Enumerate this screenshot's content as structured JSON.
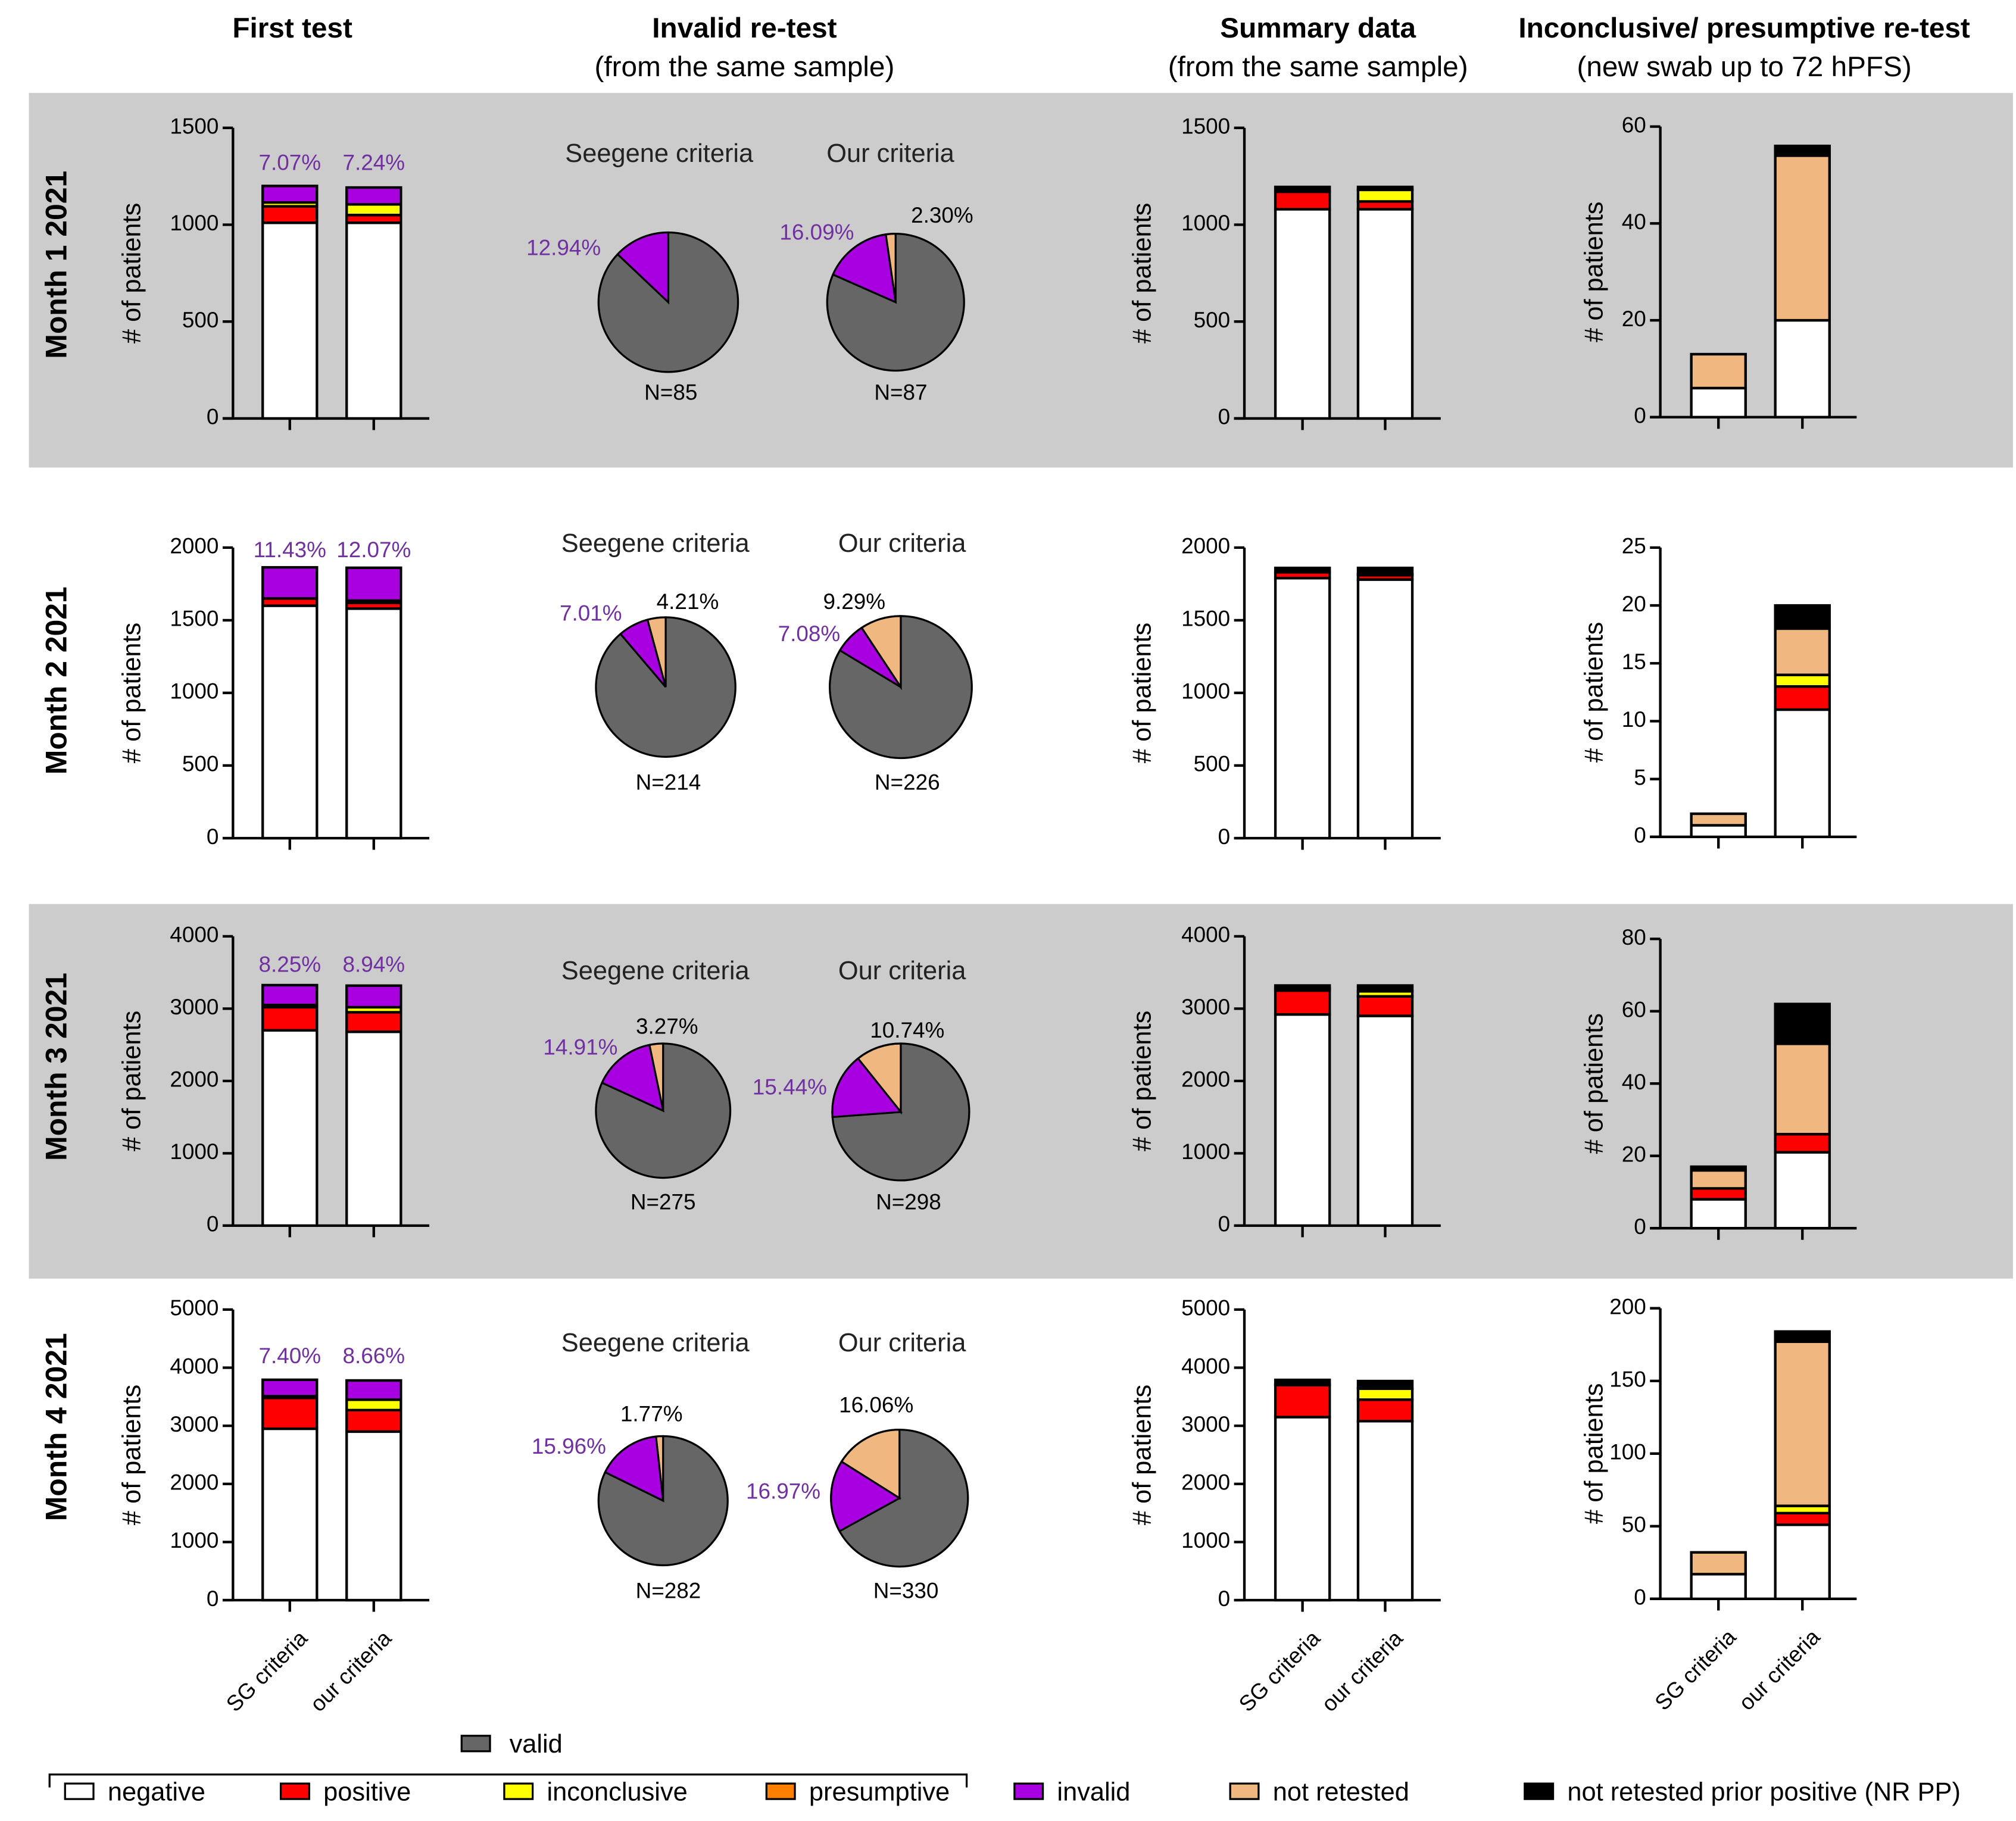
{
  "column_titles": {
    "first_test": "First test",
    "invalid_retest": "Invalid re-test",
    "invalid_retest_sub": "(from the same sample)",
    "summary": "Summary data",
    "summary_sub": "(from the same sample)",
    "inconclusive": "Inconclusive/ presumptive re-test",
    "inconclusive_sub": "(new swab up to 72 hPFS)"
  },
  "pie_titles": {
    "seegene": "Seegene criteria",
    "ours": "Our criteria"
  },
  "legend": {
    "valid": "valid",
    "items": [
      {
        "key": "negative",
        "label": "negative"
      },
      {
        "key": "positive",
        "label": "positive"
      },
      {
        "key": "inconclusive",
        "label": "inconclusive"
      },
      {
        "key": "presumptive",
        "label": "presumptive"
      },
      {
        "key": "invalid",
        "label": "invalid"
      },
      {
        "key": "not_retested",
        "label": "not retested"
      },
      {
        "key": "nr_pp",
        "label": "not retested prior positive (NR PP)"
      }
    ]
  },
  "colors": {
    "negative": "#ffffff",
    "positive": "#ff0000",
    "inconclusive": "#ffff00",
    "presumptive": "#ff8000",
    "invalid": "#a800e0",
    "not_retested": "#f0b880",
    "nr_pp": "#000000",
    "valid": "#666666",
    "percent_text": "#7030a0",
    "band": "#cccccc"
  },
  "chart_data": {
    "type": "bar",
    "stacked": true,
    "series_order": [
      "negative",
      "positive",
      "inconclusive",
      "presumptive",
      "invalid",
      "not_retested",
      "nr_pp"
    ],
    "categories": [
      "SG criteria",
      "our criteria"
    ],
    "ylabel": "# of patients",
    "rows": [
      {
        "label": "Month 1 2021",
        "first_test": {
          "ylim": [
            0,
            1500
          ],
          "ticks": [
            "0",
            "500",
            "1000",
            "1500"
          ],
          "bars": [
            {
              "segments": [
                1010,
                85,
                20,
                0,
                85,
                0,
                0
              ],
              "invalid_pct": "7.07%"
            },
            {
              "segments": [
                1010,
                40,
                55,
                0,
                87,
                0,
                0
              ],
              "invalid_pct": "7.24%"
            }
          ]
        },
        "invalid_retest": [
          {
            "n": "N=85",
            "not_retested": 0,
            "invalid": 12.94,
            "valid": 87.06,
            "invalid_label": "12.94%",
            "nr_label": null
          },
          {
            "n": "N=87",
            "not_retested": 2.3,
            "invalid": 16.09,
            "valid": 81.61,
            "invalid_label": "16.09%",
            "nr_label": "2.30%"
          }
        ],
        "summary": {
          "ylim": [
            0,
            1500
          ],
          "ticks": [
            "0",
            "500",
            "1000",
            "1500"
          ],
          "bars": [
            {
              "segments": [
                1080,
                90,
                0,
                0,
                0,
                0,
                25
              ]
            },
            {
              "segments": [
                1080,
                40,
                60,
                0,
                0,
                0,
                15
              ]
            }
          ]
        },
        "inconclusive": {
          "ylim": [
            0,
            60
          ],
          "ticks": [
            "0",
            "20",
            "40",
            "60"
          ],
          "bars": [
            {
              "segments": [
                6,
                0,
                0,
                0,
                0,
                7,
                0
              ]
            },
            {
              "segments": [
                20,
                0,
                0,
                0,
                0,
                34,
                2
              ]
            }
          ]
        }
      },
      {
        "label": "Month 2 2021",
        "first_test": {
          "ylim": [
            0,
            2000
          ],
          "ticks": [
            "0",
            "500",
            "1000",
            "1500",
            "2000"
          ],
          "bars": [
            {
              "segments": [
                1600,
                50,
                0,
                0,
                214,
                0,
                0
              ],
              "invalid_pct": "11.43%"
            },
            {
              "segments": [
                1580,
                40,
                15,
                0,
                226,
                0,
                0
              ],
              "invalid_pct": "12.07%"
            }
          ]
        },
        "invalid_retest": [
          {
            "n": "N=214",
            "not_retested": 4.21,
            "invalid": 7.01,
            "valid": 88.78,
            "invalid_label": "7.01%",
            "nr_label": "4.21%"
          },
          {
            "n": "N=226",
            "not_retested": 9.29,
            "invalid": 7.08,
            "valid": 83.63,
            "invalid_label": "7.08%",
            "nr_label": "9.29%"
          }
        ],
        "summary": {
          "ylim": [
            0,
            2000
          ],
          "ticks": [
            "0",
            "500",
            "1000",
            "1500",
            "2000"
          ],
          "bars": [
            {
              "segments": [
                1790,
                40,
                0,
                0,
                0,
                0,
                30
              ]
            },
            {
              "segments": [
                1780,
                30,
                10,
                0,
                0,
                0,
                40
              ]
            }
          ]
        },
        "inconclusive": {
          "ylim": [
            0,
            25
          ],
          "ticks": [
            "0",
            "5",
            "10",
            "15",
            "20",
            "25"
          ],
          "bars": [
            {
              "segments": [
                1,
                0,
                0,
                0,
                0,
                1,
                0
              ]
            },
            {
              "segments": [
                11,
                2,
                1,
                0,
                0,
                4,
                2
              ]
            }
          ]
        }
      },
      {
        "label": "Month 3  2021",
        "first_test": {
          "ylim": [
            0,
            4000
          ],
          "ticks": [
            "0",
            "1000",
            "2000",
            "3000",
            "4000"
          ],
          "bars": [
            {
              "segments": [
                2700,
                320,
                30,
                0,
                275,
                0,
                0
              ],
              "invalid_pct": "8.25%"
            },
            {
              "segments": [
                2680,
                270,
                70,
                0,
                298,
                0,
                0
              ],
              "invalid_pct": "8.94%"
            }
          ]
        },
        "invalid_retest": [
          {
            "n": "N=275",
            "not_retested": 3.27,
            "invalid": 14.91,
            "valid": 81.82,
            "invalid_label": "14.91%",
            "nr_label": "3.27%"
          },
          {
            "n": "N=298",
            "not_retested": 10.74,
            "invalid": 15.44,
            "valid": 73.82,
            "invalid_label": "15.44%",
            "nr_label": "10.74%"
          }
        ],
        "summary": {
          "ylim": [
            0,
            4000
          ],
          "ticks": [
            "0",
            "1000",
            "2000",
            "3000",
            "4000"
          ],
          "bars": [
            {
              "segments": [
                2920,
                330,
                30,
                0,
                0,
                0,
                40
              ]
            },
            {
              "segments": [
                2900,
                270,
                70,
                0,
                0,
                0,
                80
              ]
            }
          ]
        },
        "inconclusive": {
          "ylim": [
            0,
            80
          ],
          "ticks": [
            "0",
            "20",
            "40",
            "60",
            "80"
          ],
          "bars": [
            {
              "segments": [
                8,
                3,
                0,
                0,
                0,
                5,
                1
              ]
            },
            {
              "segments": [
                21,
                5,
                0,
                0,
                0,
                25,
                11
              ]
            }
          ]
        }
      },
      {
        "label": "Month 4 2021",
        "first_test": {
          "ylim": [
            0,
            5000
          ],
          "ticks": [
            "0",
            "1000",
            "2000",
            "3000",
            "4000",
            "5000"
          ],
          "bars": [
            {
              "segments": [
                2950,
                530,
                30,
                0,
                282,
                0,
                0
              ],
              "invalid_pct": "7.40%"
            },
            {
              "segments": [
                2900,
                370,
                180,
                0,
                330,
                0,
                0
              ],
              "invalid_pct": "8.66%"
            }
          ]
        },
        "invalid_retest": [
          {
            "n": "N=282",
            "not_retested": 1.77,
            "invalid": 15.96,
            "valid": 82.27,
            "invalid_label": "15.96%",
            "nr_label": "1.77%"
          },
          {
            "n": "N=330",
            "not_retested": 16.06,
            "invalid": 16.97,
            "valid": 66.97,
            "invalid_label": "16.97%",
            "nr_label": "16.06%"
          }
        ],
        "summary": {
          "ylim": [
            0,
            5000
          ],
          "ticks": [
            "0",
            "1000",
            "2000",
            "3000",
            "4000",
            "5000"
          ],
          "bars": [
            {
              "segments": [
                3150,
                550,
                10,
                0,
                0,
                0,
                80
              ]
            },
            {
              "segments": [
                3080,
                370,
                190,
                0,
                0,
                0,
                130
              ]
            }
          ]
        },
        "inconclusive": {
          "ylim": [
            0,
            200
          ],
          "ticks": [
            "0",
            "50",
            "100",
            "150",
            "200"
          ],
          "bars": [
            {
              "segments": [
                17,
                0,
                0,
                0,
                0,
                15,
                0
              ]
            },
            {
              "segments": [
                51,
                8,
                5,
                0,
                0,
                113,
                7
              ]
            }
          ]
        }
      }
    ]
  }
}
